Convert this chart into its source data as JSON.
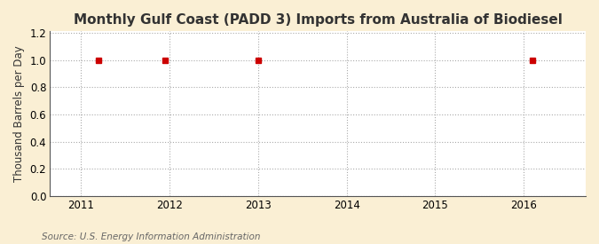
{
  "title": "Monthly Gulf Coast (PADD 3) Imports from Australia of Biodiesel",
  "ylabel": "Thousand Barrels per Day",
  "source": "Source: U.S. Energy Information Administration",
  "fig_bg_color": "#faefd4",
  "plot_bg_color": "#ffffff",
  "data_x": [
    2011.2,
    2011.95,
    2013.0,
    2016.1
  ],
  "data_y": [
    1.0,
    1.0,
    1.0,
    1.0
  ],
  "marker_color": "#cc0000",
  "marker": "s",
  "marker_size": 4,
  "ylim": [
    0.0,
    1.21
  ],
  "yticks": [
    0.0,
    0.2,
    0.4,
    0.6,
    0.8,
    1.0,
    1.2
  ],
  "xlim": [
    2010.65,
    2016.7
  ],
  "xticks": [
    2011,
    2012,
    2013,
    2014,
    2015,
    2016
  ],
  "grid_color": "#aaaaaa",
  "grid_linestyle": ":",
  "grid_linewidth": 0.8,
  "title_fontsize": 11,
  "title_fontweight": "bold",
  "label_fontsize": 8.5,
  "tick_fontsize": 8.5,
  "source_fontsize": 7.5
}
